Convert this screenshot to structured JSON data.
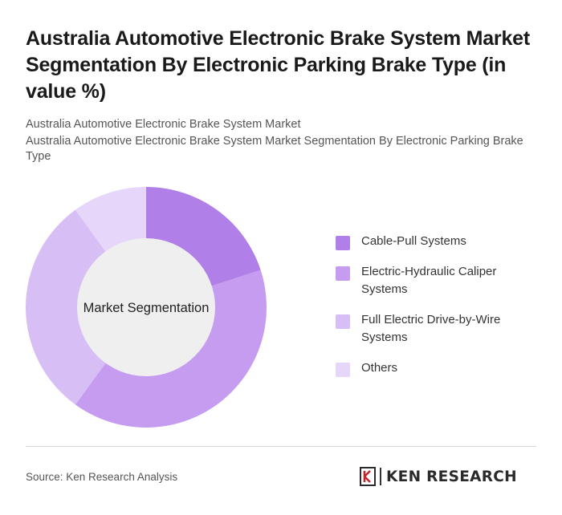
{
  "header": {
    "title": "Australia Automotive Electronic Brake System Market Segmentation By Electronic Parking Brake Type (in value %)",
    "subtitle_line1": "Australia Automotive Electronic Brake System Market",
    "subtitle_line2": "Australia Automotive Electronic Brake System Market Segmentation By Electronic Parking Brake Type"
  },
  "chart_data": {
    "type": "pie",
    "donut": true,
    "center_label": "Market Segmentation",
    "categories": [
      "Cable-Pull Systems",
      "Electric-Hydraulic Caliper Systems",
      "Full Electric Drive-by-Wire Systems",
      "Others"
    ],
    "values": [
      20,
      40,
      30,
      10
    ],
    "colors": [
      "#b07fe8",
      "#c59cf0",
      "#d7bef5",
      "#e6d6fa"
    ],
    "legend_position": "right"
  },
  "footer": {
    "source": "Source: Ken Research Analysis",
    "brand": "KEN RESEARCH",
    "brand_color": "#2b2b2b"
  }
}
